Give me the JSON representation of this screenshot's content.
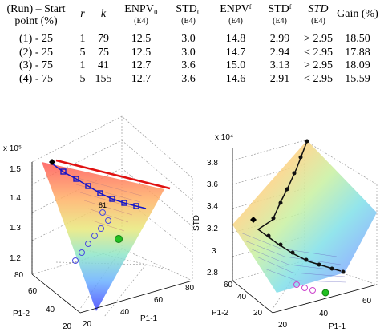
{
  "table": {
    "headers": [
      {
        "main": "(Run) – Start",
        "main2": "point (%)",
        "sub": ""
      },
      {
        "main": "r",
        "main2": "",
        "sub": "",
        "italic": true
      },
      {
        "main": "k",
        "main2": "",
        "sub": "",
        "italic": true
      },
      {
        "main": "ENPV₀",
        "main2": "",
        "sub": "(E4)"
      },
      {
        "main": "STD₀",
        "main2": "",
        "sub": "(E4)"
      },
      {
        "main": "ENPVᶠ",
        "main2": "",
        "sub": "(E4)"
      },
      {
        "main": "STDᶠ",
        "main2": "",
        "sub": "(E4)"
      },
      {
        "main": "STD",
        "main2": "",
        "sub": "(E4)",
        "italic": true
      },
      {
        "main": "Gain (%)",
        "main2": "",
        "sub": ""
      }
    ],
    "rows": [
      [
        "(1) - 25",
        "1",
        "79",
        "12.5",
        "3.0",
        "14.8",
        "2.99",
        "> 2.95",
        "18.50"
      ],
      [
        "(2) - 25",
        "5",
        "75",
        "12.5",
        "3.0",
        "14.7",
        "2.94",
        "< 2.95",
        "17.88"
      ],
      [
        "(3) - 75",
        "1",
        "41",
        "12.7",
        "3.6",
        "15.0",
        "3.13",
        "> 2.95",
        "18.09"
      ],
      [
        "(4) - 75",
        "5",
        "155",
        "12.7",
        "3.6",
        "14.6",
        "2.91",
        "< 2.95",
        "15.59"
      ]
    ]
  },
  "left_plot": {
    "exponent": "x 10⁵",
    "z_ticks": [
      "1.5",
      "1.4",
      "1.3",
      "1.2"
    ],
    "x_label": "P1-1",
    "y_label": "P1-2",
    "x_ticks": [
      "20",
      "40",
      "60",
      "80"
    ],
    "y_ticks": [
      "80",
      "60",
      "40",
      "20"
    ],
    "point_labels": [
      "81"
    ]
  },
  "right_plot": {
    "exponent": "x 10⁴",
    "z_label": "STD",
    "z_ticks": [
      "3.8",
      "3.6",
      "3.4",
      "3.2",
      "3",
      "2.8"
    ],
    "x_label": "P1-1",
    "y_label": "P1-2",
    "x_ticks": [
      "20",
      "40",
      "60"
    ],
    "y_ticks": [
      "60",
      "40",
      "20"
    ]
  },
  "colors": {
    "path_marker": "#1414c8",
    "end_marker": "#22c022",
    "path_right": "#111111"
  }
}
